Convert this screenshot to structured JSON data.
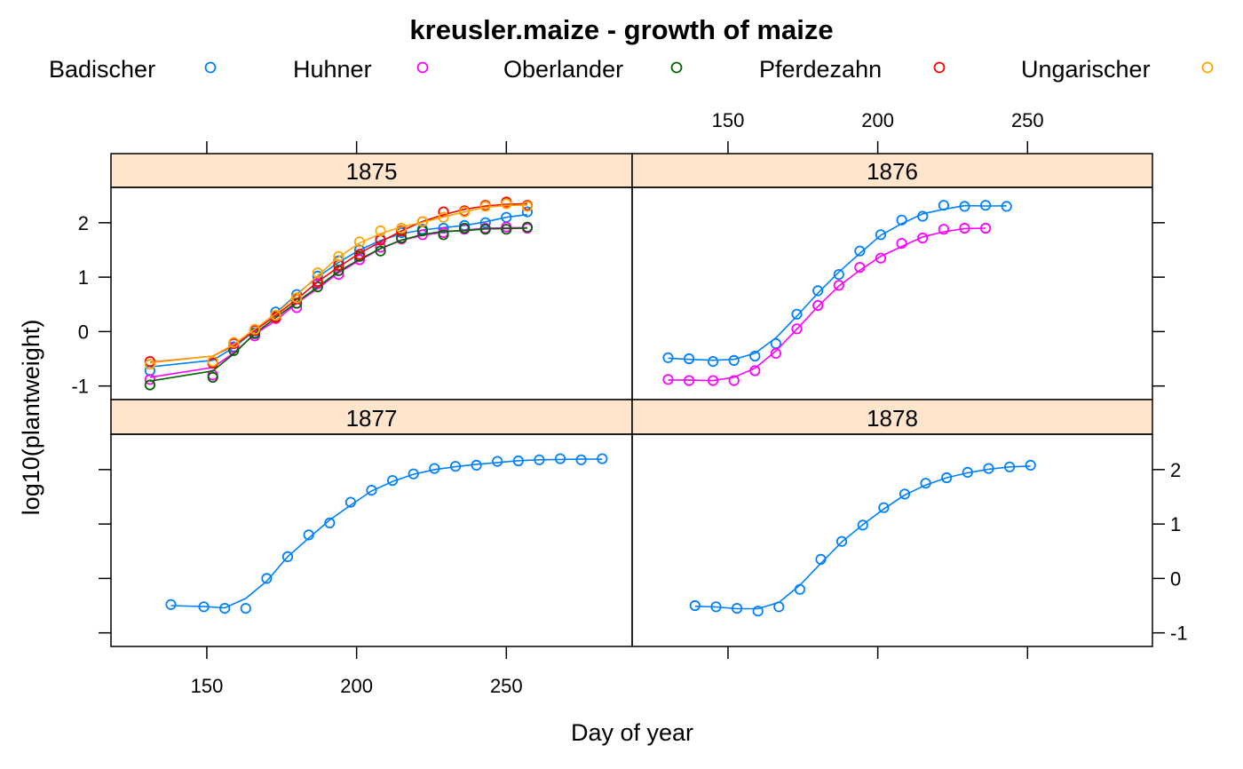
{
  "chart_data": {
    "type": "scatter",
    "title": "kreusler.maize - growth of maize",
    "xlabel": "Day of year",
    "ylabel": "log10(plantweight)",
    "xlim": [
      118,
      292
    ],
    "ylim": [
      -1.25,
      2.65
    ],
    "x_ticks": [
      150,
      200,
      250
    ],
    "y_ticks": [
      -1,
      0,
      1,
      2
    ],
    "layout": "2x2 panels with shared axes, points with smoothed lines",
    "legend": {
      "position": "top",
      "entries": [
        {
          "name": "Badischer",
          "color": "#0080ff"
        },
        {
          "name": "Huhner",
          "color": "#ff00ff"
        },
        {
          "name": "Oberlander",
          "color": "#006400"
        },
        {
          "name": "Pferdezahn",
          "color": "#ff0000"
        },
        {
          "name": "Ungarischer",
          "color": "#ffa500"
        }
      ]
    },
    "panels": [
      {
        "strip": "1875",
        "series": [
          {
            "name": "Badischer",
            "color": "#0080ff",
            "x": [
              131,
              152,
              159,
              166,
              173,
              180,
              187,
              194,
              201,
              208,
              215,
              222,
              229,
              236,
              243,
              250,
              257
            ],
            "y": [
              -0.72,
              -0.58,
              -0.28,
              -0.02,
              0.36,
              0.68,
              1.02,
              1.3,
              1.5,
              1.7,
              1.82,
              1.88,
              1.9,
              1.95,
              2.0,
              2.1,
              2.2
            ]
          },
          {
            "name": "Huhner",
            "color": "#ff00ff",
            "x": [
              131,
              152,
              159,
              166,
              173,
              180,
              187,
              194,
              201,
              208,
              215,
              222,
              229,
              236,
              243,
              250,
              257
            ],
            "y": [
              -0.88,
              -0.8,
              -0.3,
              -0.08,
              0.24,
              0.44,
              0.88,
              1.05,
              1.32,
              1.55,
              1.7,
              1.78,
              1.82,
              1.88,
              1.9,
              1.92,
              1.9
            ]
          },
          {
            "name": "Oberlander",
            "color": "#006400",
            "x": [
              131,
              152,
              159,
              166,
              173,
              180,
              187,
              194,
              201,
              208,
              215,
              222,
              229,
              236,
              243,
              250,
              257
            ],
            "y": [
              -0.98,
              -0.84,
              -0.35,
              -0.04,
              0.28,
              0.52,
              0.82,
              1.12,
              1.38,
              1.48,
              1.72,
              1.85,
              1.78,
              1.9,
              1.88,
              1.88,
              1.92
            ]
          },
          {
            "name": "Pferdezahn",
            "color": "#ff0000",
            "x": [
              131,
              152,
              159,
              166,
              173,
              180,
              187,
              194,
              201,
              208,
              215,
              222,
              229,
              236,
              243,
              250,
              257
            ],
            "y": [
              -0.55,
              -0.58,
              -0.22,
              0.02,
              0.26,
              0.6,
              0.92,
              1.22,
              1.42,
              1.68,
              1.85,
              2.02,
              2.2,
              2.22,
              2.32,
              2.38,
              2.32
            ]
          },
          {
            "name": "Ungarischer",
            "color": "#ffa500",
            "x": [
              131,
              152,
              159,
              166,
              173,
              180,
              187,
              194,
              201,
              208,
              215,
              222,
              229,
              236,
              243,
              250,
              257
            ],
            "y": [
              -0.6,
              -0.55,
              -0.2,
              0.04,
              0.3,
              0.62,
              1.08,
              1.38,
              1.65,
              1.85,
              1.9,
              2.02,
              2.1,
              2.2,
              2.3,
              2.35,
              2.3
            ]
          }
        ]
      },
      {
        "strip": "1876",
        "series": [
          {
            "name": "Badischer",
            "color": "#0080ff",
            "x": [
              130,
              137,
              145,
              152,
              159,
              166,
              173,
              180,
              187,
              194,
              201,
              208,
              215,
              222,
              229,
              236,
              243
            ],
            "y": [
              -0.48,
              -0.5,
              -0.55,
              -0.53,
              -0.45,
              -0.22,
              0.32,
              0.75,
              1.05,
              1.48,
              1.78,
              2.05,
              2.12,
              2.32,
              2.3,
              2.32,
              2.3
            ]
          },
          {
            "name": "Huhner",
            "color": "#ff00ff",
            "x": [
              130,
              137,
              145,
              152,
              159,
              166,
              173,
              180,
              187,
              194,
              201,
              208,
              215,
              222,
              229,
              236
            ],
            "y": [
              -0.88,
              -0.9,
              -0.9,
              -0.9,
              -0.72,
              -0.4,
              0.05,
              0.48,
              0.85,
              1.18,
              1.35,
              1.62,
              1.72,
              1.88,
              1.9,
              1.9
            ]
          }
        ]
      },
      {
        "strip": "1877",
        "series": [
          {
            "name": "Badischer",
            "color": "#0080ff",
            "x": [
              138,
              149,
              156,
              163,
              170,
              177,
              184,
              191,
              198,
              205,
              212,
              219,
              226,
              233,
              240,
              247,
              254,
              261,
              268,
              275,
              282
            ],
            "y": [
              -0.48,
              -0.52,
              -0.55,
              -0.55,
              0.0,
              0.4,
              0.8,
              1.02,
              1.4,
              1.62,
              1.8,
              1.92,
              2.02,
              2.06,
              2.08,
              2.15,
              2.16,
              2.18,
              2.2,
              2.18,
              2.2
            ]
          }
        ]
      },
      {
        "strip": "1878",
        "series": [
          {
            "name": "Badischer",
            "color": "#0080ff",
            "x": [
              139,
              146,
              153,
              160,
              167,
              174,
              181,
              188,
              195,
              202,
              209,
              216,
              223,
              230,
              237,
              244,
              251
            ],
            "y": [
              -0.5,
              -0.52,
              -0.55,
              -0.6,
              -0.52,
              -0.2,
              0.35,
              0.68,
              0.98,
              1.3,
              1.55,
              1.75,
              1.85,
              1.95,
              2.02,
              2.05,
              2.08
            ]
          }
        ]
      }
    ]
  }
}
